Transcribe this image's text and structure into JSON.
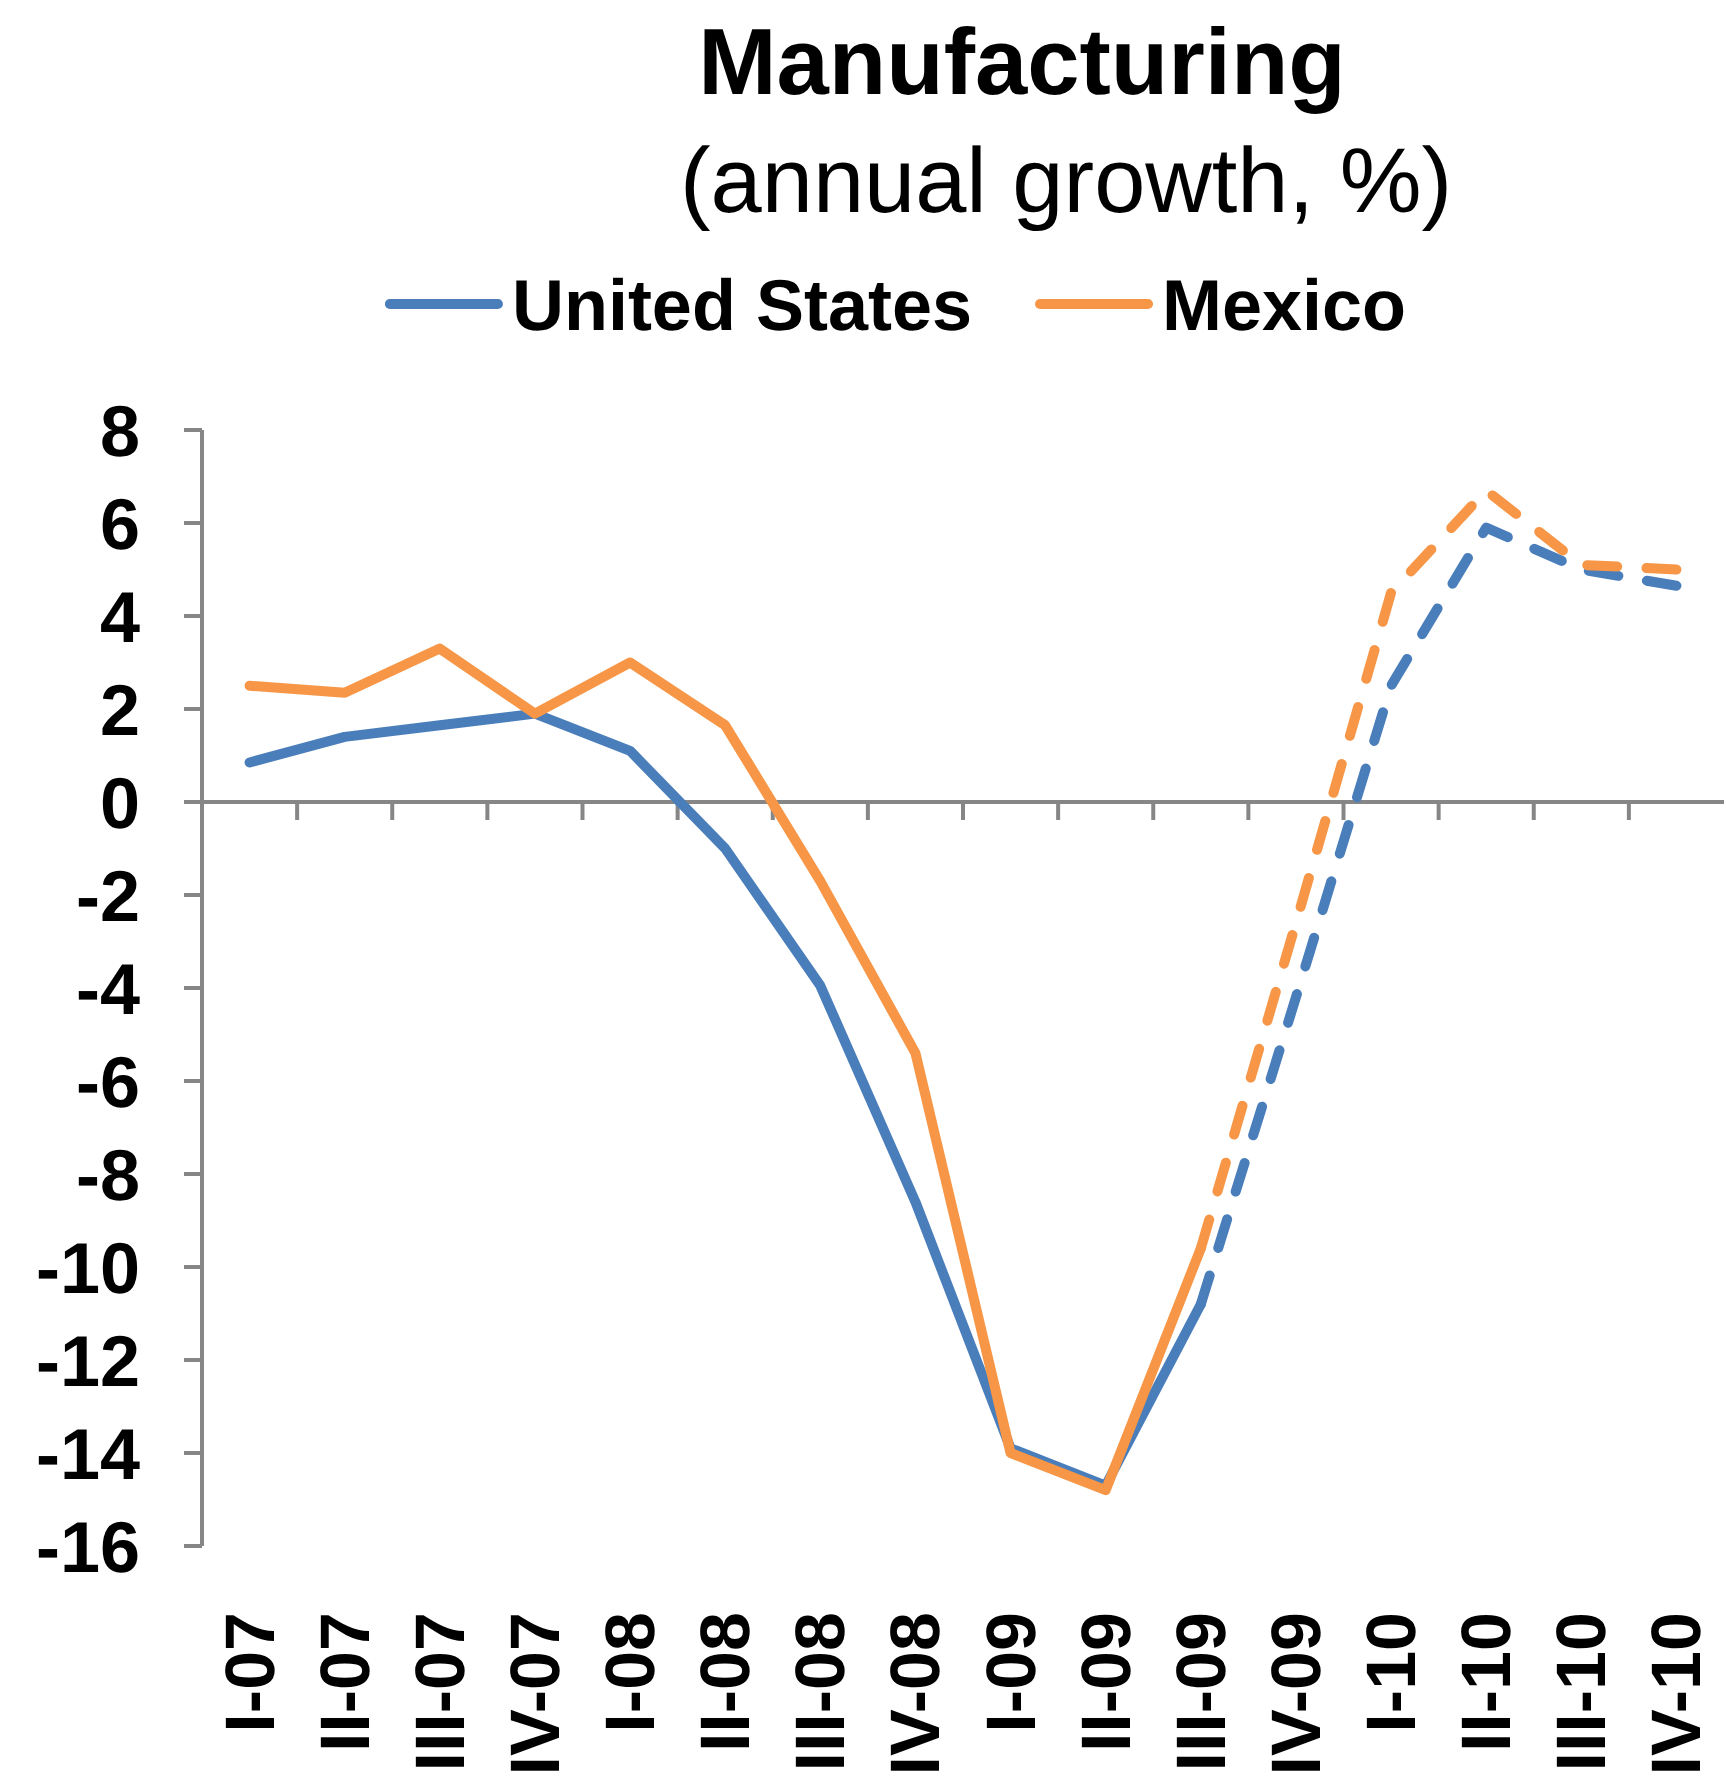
{
  "chart_data": {
    "type": "line",
    "title": "Manufacturing",
    "subtitle": "(annual growth, %)",
    "categories": [
      "I-07",
      "II-07",
      "III-07",
      "IV-07",
      "I-08",
      "II-08",
      "III-08",
      "IV-08",
      "I-09",
      "II-09",
      "III-09",
      "IV-09",
      "I-10",
      "II-10",
      "III-10",
      "IV-10"
    ],
    "series": [
      {
        "name": "United States",
        "color": "#4a7ebb",
        "line_style": "solid",
        "values": [
          0.85,
          1.4,
          1.65,
          1.9,
          1.1,
          -1.0,
          -3.95,
          -8.6,
          -13.9,
          -14.7,
          -10.8,
          null,
          null,
          null,
          null,
          null
        ]
      },
      {
        "name": "Mexico",
        "color": "#f79646",
        "line_style": "solid",
        "values": [
          2.5,
          2.35,
          3.3,
          1.9,
          3.0,
          1.65,
          -1.7,
          -5.4,
          -14.0,
          -14.8,
          -9.6,
          null,
          null,
          null,
          null,
          null
        ]
      },
      {
        "color": "#4a7ebb",
        "line_style": "dashed",
        "values": [
          null,
          null,
          null,
          null,
          null,
          null,
          null,
          null,
          null,
          null,
          -10.8,
          -4.2,
          2.5,
          5.9,
          5.0,
          4.65
        ]
      },
      {
        "color": "#f79646",
        "line_style": "dashed",
        "values": [
          null,
          null,
          null,
          null,
          null,
          null,
          null,
          null,
          null,
          null,
          -9.6,
          -2.6,
          4.5,
          6.7,
          5.1,
          5.0
        ]
      }
    ],
    "ylim": [
      -16,
      8
    ],
    "yticks": [
      -16,
      -14,
      -12,
      -10,
      -8,
      -6,
      -4,
      -2,
      0,
      2,
      4,
      6,
      8
    ],
    "legend": "top"
  }
}
